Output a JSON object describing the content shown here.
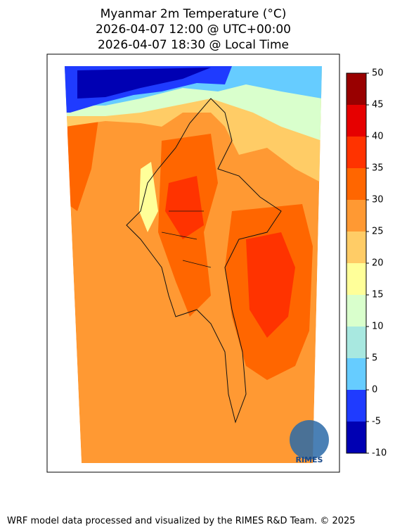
{
  "title": [
    "Myanmar 2m Temperature (°C)",
    "2026-04-07 12:00 @ UTC+00:00",
    "2026-04-07 18:30 @ Local Time"
  ],
  "colorbar": {
    "ticks": [
      -10,
      -5,
      0,
      5,
      10,
      15,
      20,
      25,
      30,
      35,
      40,
      45,
      50
    ],
    "colors": [
      "#0000b3",
      "#1f3bff",
      "#66ccff",
      "#a8e8e0",
      "#d9ffcc",
      "#ffff99",
      "#ffcc66",
      "#ff9933",
      "#ff6600",
      "#ff3300",
      "#e60000",
      "#990000"
    ]
  },
  "logo": "RIMES",
  "footer": "WRF model data processed and visualized by the RIMES R&D Team. © 2025"
}
